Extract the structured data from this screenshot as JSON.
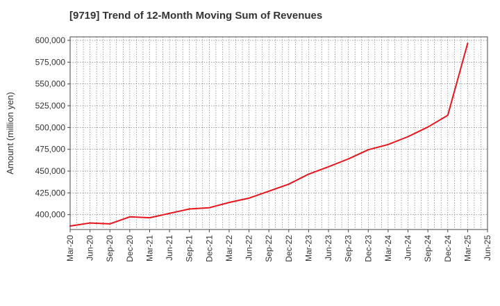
{
  "chart_data": {
    "type": "line",
    "title": "[9719]  Trend of 12-Month Moving Sum of Revenues",
    "xlabel": "",
    "ylabel": "Amount (million yen)",
    "ylim": [
      383000,
      604000
    ],
    "y_ticks": [
      400000,
      425000,
      450000,
      475000,
      500000,
      525000,
      550000,
      575000,
      600000
    ],
    "y_tick_labels": [
      "400,000",
      "425,000",
      "450,000",
      "475,000",
      "500,000",
      "525,000",
      "550,000",
      "575,000",
      "600,000"
    ],
    "x_tick_labels": [
      "Mar-20",
      "Jun-20",
      "Sep-20",
      "Dec-20",
      "Mar-21",
      "Jun-21",
      "Sep-21",
      "Dec-21",
      "Mar-22",
      "Jun-22",
      "Sep-22",
      "Dec-22",
      "Mar-23",
      "Jun-23",
      "Sep-23",
      "Dec-23",
      "Mar-24",
      "Jun-24",
      "Sep-24",
      "Dec-24",
      "Mar-25",
      "Jun-25"
    ],
    "grid": true,
    "line_color": "#e8141b",
    "series": [
      {
        "x": [
          "Mar-20",
          "Jun-20",
          "Sep-20",
          "Dec-20",
          "Mar-21",
          "Jun-21",
          "Sep-21",
          "Dec-21",
          "Mar-22",
          "Jun-22",
          "Sep-22",
          "Dec-22",
          "Mar-23",
          "Jun-23",
          "Sep-23",
          "Dec-23",
          "Mar-24",
          "Jun-24",
          "Sep-24",
          "Dec-24",
          "Mar-25"
        ],
        "values": [
          387000,
          390500,
          389500,
          397500,
          396500,
          401500,
          406500,
          408000,
          414000,
          419000,
          427000,
          435000,
          446500,
          455000,
          464000,
          474500,
          480500,
          489500,
          500500,
          514000,
          596500
        ]
      }
    ]
  }
}
